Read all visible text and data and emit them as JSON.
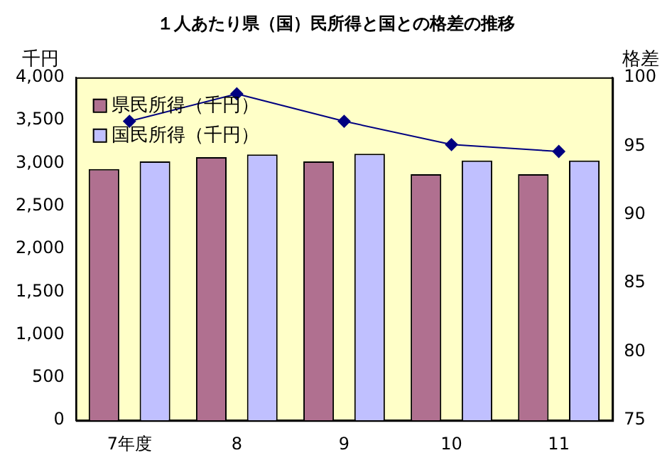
{
  "chart_data": {
    "type": "bar",
    "title": "１人あたり県（国）民所得と国との格差の推移",
    "ylabel": "千円",
    "y2label": "格差",
    "categories": [
      "7年度",
      "8",
      "9",
      "10",
      "11"
    ],
    "series": [
      {
        "name": "県民所得（千円）",
        "color": "#b07090",
        "values": [
          2930,
          3070,
          3020,
          2870,
          2870
        ]
      },
      {
        "name": "国民所得（千円）",
        "color": "#c0c0ff",
        "values": [
          3020,
          3100,
          3110,
          3030,
          3030
        ]
      },
      {
        "type": "line",
        "axis": "y2",
        "color": "#000080",
        "marker": "diamond",
        "values": [
          96.8,
          98.8,
          96.8,
          95.1,
          94.6
        ]
      }
    ],
    "ylim": [
      0,
      4000
    ],
    "yticks": [
      0,
      {
        "value": 500,
        "label": "500"
      },
      {
        "value": 1000,
        "label": "1,000"
      },
      {
        "value": 1500,
        "label": "1,500"
      },
      {
        "value": 2000,
        "label": "2,000"
      },
      {
        "value": 2500,
        "label": "2,500"
      },
      {
        "value": 3000,
        "label": "3,000"
      },
      {
        "value": 3500,
        "label": "3,500"
      },
      {
        "value": 4000,
        "label": "4,000"
      }
    ],
    "y2lim": [
      75,
      100
    ],
    "y2ticks": [
      75,
      80,
      85,
      90,
      95,
      100
    ],
    "grid": false,
    "legend": "top left"
  }
}
